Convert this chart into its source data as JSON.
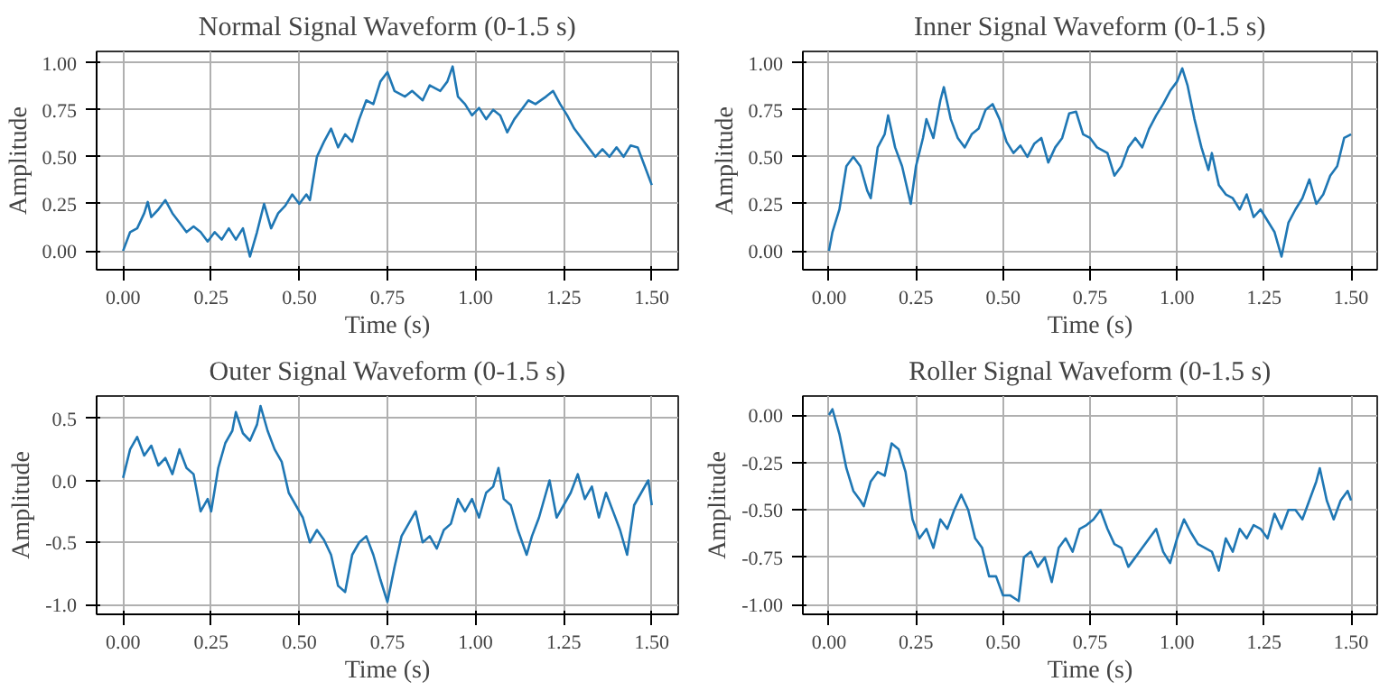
{
  "chart_data": [
    {
      "type": "line",
      "title": "Normal Signal Waveform (0-1.5 s)",
      "xlabel": "Time (s)",
      "ylabel": "Amplitude",
      "grid": true,
      "xlim": [
        -0.075,
        1.575
      ],
      "ylim": [
        -0.1,
        1.06
      ],
      "xticks": [
        {
          "value": 0,
          "label": "0.00"
        },
        {
          "value": 0.25,
          "label": "0.25"
        },
        {
          "value": 0.5,
          "label": "0.50"
        },
        {
          "value": 0.75,
          "label": "0.75"
        },
        {
          "value": 1,
          "label": "1.00"
        },
        {
          "value": 1.25,
          "label": "1.25"
        },
        {
          "value": 1.5,
          "label": "1.50"
        }
      ],
      "yticks": [
        {
          "value": 0,
          "label": "0.00"
        },
        {
          "value": 0.25,
          "label": "0.25"
        },
        {
          "value": 0.5,
          "label": "0.50"
        },
        {
          "value": 0.75,
          "label": "0.75"
        },
        {
          "value": 1,
          "label": "1.00"
        }
      ],
      "series": [
        {
          "color": "#1f77b4",
          "x": [
            0,
            0.02,
            0.04,
            0.06,
            0.07,
            0.08,
            0.1,
            0.12,
            0.14,
            0.16,
            0.18,
            0.2,
            0.22,
            0.24,
            0.26,
            0.28,
            0.3,
            0.32,
            0.34,
            0.36,
            0.38,
            0.4,
            0.42,
            0.44,
            0.46,
            0.48,
            0.5,
            0.52,
            0.53,
            0.55,
            0.57,
            0.59,
            0.61,
            0.63,
            0.65,
            0.67,
            0.69,
            0.71,
            0.73,
            0.75,
            0.77,
            0.8,
            0.82,
            0.85,
            0.87,
            0.9,
            0.92,
            0.935,
            0.95,
            0.97,
            0.99,
            1.01,
            1.03,
            1.05,
            1.07,
            1.09,
            1.11,
            1.13,
            1.15,
            1.17,
            1.2,
            1.22,
            1.24,
            1.26,
            1.28,
            1.3,
            1.32,
            1.34,
            1.36,
            1.38,
            1.4,
            1.42,
            1.44,
            1.46,
            1.48,
            1.5
          ],
          "values": [
            0,
            0.1,
            0.12,
            0.2,
            0.26,
            0.18,
            0.22,
            0.27,
            0.2,
            0.15,
            0.1,
            0.13,
            0.1,
            0.05,
            0.1,
            0.06,
            0.12,
            0.06,
            0.12,
            -0.03,
            0.1,
            0.25,
            0.12,
            0.2,
            0.24,
            0.3,
            0.25,
            0.3,
            0.27,
            0.5,
            0.58,
            0.65,
            0.55,
            0.62,
            0.58,
            0.7,
            0.8,
            0.78,
            0.9,
            0.95,
            0.85,
            0.82,
            0.85,
            0.8,
            0.88,
            0.85,
            0.9,
            0.98,
            0.82,
            0.78,
            0.72,
            0.76,
            0.7,
            0.75,
            0.72,
            0.63,
            0.7,
            0.75,
            0.8,
            0.78,
            0.82,
            0.85,
            0.78,
            0.72,
            0.65,
            0.6,
            0.55,
            0.5,
            0.54,
            0.5,
            0.55,
            0.5,
            0.56,
            0.55,
            0.45,
            0.35
          ]
        }
      ]
    },
    {
      "type": "line",
      "title": "Inner Signal Waveform (0-1.5 s)",
      "xlabel": "Time (s)",
      "ylabel": "Amplitude",
      "grid": true,
      "xlim": [
        -0.075,
        1.575
      ],
      "ylim": [
        -0.1,
        1.06
      ],
      "xticks": [
        {
          "value": 0,
          "label": "0.00"
        },
        {
          "value": 0.25,
          "label": "0.25"
        },
        {
          "value": 0.5,
          "label": "0.50"
        },
        {
          "value": 0.75,
          "label": "0.75"
        },
        {
          "value": 1,
          "label": "1.00"
        },
        {
          "value": 1.25,
          "label": "1.25"
        },
        {
          "value": 1.5,
          "label": "1.50"
        }
      ],
      "yticks": [
        {
          "value": 0,
          "label": "0.00"
        },
        {
          "value": 0.25,
          "label": "0.25"
        },
        {
          "value": 0.5,
          "label": "0.50"
        },
        {
          "value": 0.75,
          "label": "0.75"
        },
        {
          "value": 1,
          "label": "1.00"
        }
      ],
      "series": [
        {
          "color": "#1f77b4",
          "x": [
            0,
            0.01,
            0.03,
            0.05,
            0.07,
            0.09,
            0.11,
            0.12,
            0.14,
            0.16,
            0.17,
            0.19,
            0.21,
            0.235,
            0.25,
            0.27,
            0.28,
            0.3,
            0.32,
            0.33,
            0.35,
            0.37,
            0.39,
            0.41,
            0.43,
            0.45,
            0.47,
            0.49,
            0.51,
            0.53,
            0.55,
            0.57,
            0.59,
            0.61,
            0.63,
            0.65,
            0.67,
            0.69,
            0.71,
            0.73,
            0.75,
            0.77,
            0.8,
            0.82,
            0.84,
            0.86,
            0.88,
            0.9,
            0.92,
            0.94,
            0.96,
            0.98,
            1.0,
            1.015,
            1.03,
            1.05,
            1.07,
            1.09,
            1.1,
            1.12,
            1.14,
            1.16,
            1.18,
            1.2,
            1.22,
            1.24,
            1.26,
            1.28,
            1.3,
            1.32,
            1.34,
            1.36,
            1.38,
            1.4,
            1.42,
            1.44,
            1.46,
            1.48,
            1.5
          ],
          "values": [
            0,
            0.1,
            0.22,
            0.45,
            0.5,
            0.45,
            0.32,
            0.28,
            0.55,
            0.62,
            0.72,
            0.55,
            0.45,
            0.25,
            0.45,
            0.6,
            0.7,
            0.6,
            0.8,
            0.87,
            0.7,
            0.6,
            0.55,
            0.62,
            0.65,
            0.75,
            0.78,
            0.7,
            0.58,
            0.52,
            0.56,
            0.5,
            0.57,
            0.6,
            0.47,
            0.55,
            0.6,
            0.73,
            0.74,
            0.62,
            0.6,
            0.55,
            0.52,
            0.4,
            0.45,
            0.55,
            0.6,
            0.55,
            0.65,
            0.72,
            0.78,
            0.85,
            0.9,
            0.97,
            0.88,
            0.7,
            0.55,
            0.43,
            0.52,
            0.35,
            0.3,
            0.28,
            0.22,
            0.3,
            0.18,
            0.22,
            0.16,
            0.1,
            -0.03,
            0.15,
            0.22,
            0.28,
            0.38,
            0.25,
            0.3,
            0.4,
            0.45,
            0.6,
            0.62
          ]
        }
      ]
    },
    {
      "type": "line",
      "title": "Outer Signal Waveform (0-1.5 s)",
      "xlabel": "Time (s)",
      "ylabel": "Amplitude",
      "grid": true,
      "xlim": [
        -0.075,
        1.575
      ],
      "ylim": [
        -1.08,
        0.68
      ],
      "xticks": [
        {
          "value": 0,
          "label": "0.00"
        },
        {
          "value": 0.25,
          "label": "0.25"
        },
        {
          "value": 0.5,
          "label": "0.50"
        },
        {
          "value": 0.75,
          "label": "0.75"
        },
        {
          "value": 1,
          "label": "1.00"
        },
        {
          "value": 1.25,
          "label": "1.25"
        },
        {
          "value": 1.5,
          "label": "1.50"
        }
      ],
      "yticks": [
        {
          "value": -1,
          "label": "-1.0"
        },
        {
          "value": -0.5,
          "label": "-0.5"
        },
        {
          "value": 0,
          "label": "0.0"
        },
        {
          "value": 0.5,
          "label": "0.5"
        }
      ],
      "series": [
        {
          "color": "#1f77b4",
          "x": [
            0,
            0.02,
            0.04,
            0.06,
            0.08,
            0.1,
            0.12,
            0.14,
            0.16,
            0.18,
            0.2,
            0.22,
            0.24,
            0.25,
            0.27,
            0.29,
            0.31,
            0.32,
            0.34,
            0.36,
            0.38,
            0.39,
            0.41,
            0.43,
            0.45,
            0.47,
            0.49,
            0.51,
            0.53,
            0.55,
            0.57,
            0.59,
            0.61,
            0.63,
            0.65,
            0.67,
            0.69,
            0.71,
            0.73,
            0.75,
            0.77,
            0.79,
            0.81,
            0.83,
            0.85,
            0.87,
            0.89,
            0.91,
            0.93,
            0.95,
            0.97,
            0.99,
            1.01,
            1.03,
            1.05,
            1.065,
            1.08,
            1.1,
            1.12,
            1.145,
            1.16,
            1.18,
            1.2,
            1.21,
            1.23,
            1.25,
            1.27,
            1.29,
            1.31,
            1.33,
            1.35,
            1.37,
            1.39,
            1.41,
            1.43,
            1.45,
            1.47,
            1.49,
            1.5
          ],
          "values": [
            0.02,
            0.25,
            0.35,
            0.2,
            0.28,
            0.12,
            0.18,
            0.05,
            0.25,
            0.1,
            0.05,
            -0.25,
            -0.15,
            -0.25,
            0.1,
            0.3,
            0.4,
            0.55,
            0.38,
            0.32,
            0.45,
            0.6,
            0.4,
            0.25,
            0.15,
            -0.1,
            -0.2,
            -0.3,
            -0.5,
            -0.4,
            -0.48,
            -0.6,
            -0.85,
            -0.9,
            -0.6,
            -0.5,
            -0.45,
            -0.6,
            -0.8,
            -0.98,
            -0.7,
            -0.45,
            -0.35,
            -0.25,
            -0.5,
            -0.45,
            -0.55,
            -0.4,
            -0.35,
            -0.15,
            -0.25,
            -0.15,
            -0.3,
            -0.1,
            -0.05,
            0.1,
            -0.15,
            -0.2,
            -0.4,
            -0.6,
            -0.45,
            -0.3,
            -0.1,
            0.0,
            -0.3,
            -0.2,
            -0.1,
            0.05,
            -0.15,
            -0.05,
            -0.3,
            -0.1,
            -0.25,
            -0.4,
            -0.6,
            -0.2,
            -0.1,
            0.0,
            -0.2
          ]
        }
      ]
    },
    {
      "type": "line",
      "title": "Roller Signal Waveform (0-1.5 s)",
      "xlabel": "Time (s)",
      "ylabel": "Amplitude",
      "grid": true,
      "xlim": [
        -0.075,
        1.575
      ],
      "ylim": [
        -1.05,
        0.1
      ],
      "xticks": [
        {
          "value": 0,
          "label": "0.00"
        },
        {
          "value": 0.25,
          "label": "0.25"
        },
        {
          "value": 0.5,
          "label": "0.50"
        },
        {
          "value": 0.75,
          "label": "0.75"
        },
        {
          "value": 1,
          "label": "1.00"
        },
        {
          "value": 1.25,
          "label": "1.25"
        },
        {
          "value": 1.5,
          "label": "1.50"
        }
      ],
      "yticks": [
        {
          "value": -1,
          "label": "-1.00"
        },
        {
          "value": -0.75,
          "label": "-0.75"
        },
        {
          "value": -0.5,
          "label": "-0.50"
        },
        {
          "value": -0.25,
          "label": "-0.25"
        },
        {
          "value": 0,
          "label": "0.00"
        }
      ],
      "series": [
        {
          "color": "#1f77b4",
          "x": [
            0,
            0.01,
            0.03,
            0.05,
            0.07,
            0.09,
            0.1,
            0.12,
            0.14,
            0.16,
            0.18,
            0.2,
            0.22,
            0.24,
            0.26,
            0.28,
            0.3,
            0.32,
            0.34,
            0.36,
            0.38,
            0.4,
            0.42,
            0.44,
            0.46,
            0.48,
            0.5,
            0.52,
            0.545,
            0.56,
            0.58,
            0.6,
            0.62,
            0.64,
            0.66,
            0.68,
            0.7,
            0.72,
            0.74,
            0.76,
            0.78,
            0.8,
            0.82,
            0.84,
            0.86,
            0.88,
            0.9,
            0.92,
            0.94,
            0.96,
            0.98,
            1.0,
            1.02,
            1.04,
            1.06,
            1.08,
            1.1,
            1.12,
            1.14,
            1.16,
            1.18,
            1.2,
            1.22,
            1.24,
            1.26,
            1.28,
            1.3,
            1.32,
            1.34,
            1.36,
            1.38,
            1.4,
            1.41,
            1.43,
            1.45,
            1.47,
            1.49,
            1.5
          ],
          "values": [
            0,
            0.03,
            -0.1,
            -0.28,
            -0.4,
            -0.45,
            -0.48,
            -0.35,
            -0.3,
            -0.32,
            -0.15,
            -0.18,
            -0.3,
            -0.55,
            -0.65,
            -0.6,
            -0.7,
            -0.55,
            -0.6,
            -0.5,
            -0.42,
            -0.5,
            -0.65,
            -0.7,
            -0.85,
            -0.85,
            -0.95,
            -0.95,
            -0.98,
            -0.75,
            -0.72,
            -0.8,
            -0.75,
            -0.88,
            -0.7,
            -0.65,
            -0.72,
            -0.6,
            -0.58,
            -0.55,
            -0.5,
            -0.6,
            -0.68,
            -0.7,
            -0.8,
            -0.75,
            -0.7,
            -0.65,
            -0.6,
            -0.72,
            -0.78,
            -0.65,
            -0.55,
            -0.62,
            -0.68,
            -0.7,
            -0.72,
            -0.82,
            -0.65,
            -0.72,
            -0.6,
            -0.65,
            -0.58,
            -0.6,
            -0.65,
            -0.52,
            -0.6,
            -0.5,
            -0.5,
            -0.55,
            -0.45,
            -0.35,
            -0.28,
            -0.45,
            -0.55,
            -0.45,
            -0.4,
            -0.45
          ]
        }
      ]
    }
  ]
}
